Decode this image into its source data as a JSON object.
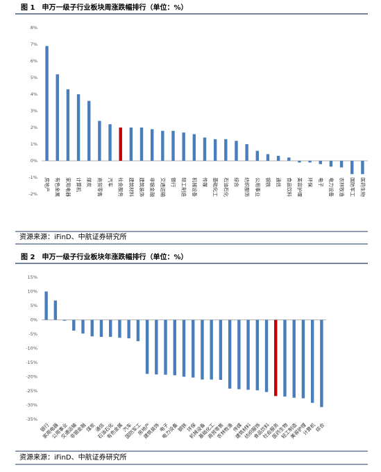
{
  "chart_data": [
    {
      "type": "bar",
      "title": "图 1　申万一级子行业板块周涨跌幅排行（单位：%）",
      "source": "资源来源：iFinD、中航证券研究所",
      "categories": [
        "房地产",
        "有色金属",
        "家用电器",
        "计算机",
        "煤炭",
        "商贸零售",
        "汽车",
        "社会服务",
        "建筑材料",
        "建筑装饰",
        "非银金融",
        "交通运输",
        "银行",
        "轻工制造",
        "机械设备",
        "传媒",
        "基础化工",
        "石油石化",
        "综合",
        "纺织服饰",
        "公用事业",
        "钢铁",
        "通信",
        "食品饮料",
        "美容护理",
        "环保",
        "电子",
        "电力设备",
        "农林牧渔",
        "国防军工",
        "医药生物"
      ],
      "values": [
        6.9,
        5.2,
        4.3,
        4.0,
        3.6,
        2.4,
        2.2,
        2.0,
        2.0,
        2.0,
        1.9,
        1.8,
        1.8,
        1.7,
        1.6,
        1.4,
        1.3,
        1.3,
        1.2,
        1.0,
        0.6,
        0.4,
        0.3,
        0.2,
        -0.1,
        -0.1,
        -0.2,
        -0.35,
        -0.4,
        -0.8,
        -0.8
      ],
      "color": "#4a7ebb",
      "highlight_color": "#c00000",
      "highlight_category": "社会服务",
      "ylim": [
        -2,
        8
      ],
      "yticks": [
        {
          "value": -2,
          "label": "-2%"
        },
        {
          "value": -1,
          "label": "-1%"
        },
        {
          "value": 0,
          "label": "0%"
        },
        {
          "value": 1,
          "label": "1%"
        },
        {
          "value": 2,
          "label": "2%"
        },
        {
          "value": 3,
          "label": "3%"
        },
        {
          "value": 4,
          "label": "4%"
        },
        {
          "value": 5,
          "label": "5%"
        },
        {
          "value": 6,
          "label": "6%"
        },
        {
          "value": 7,
          "label": "7%"
        },
        {
          "value": 8,
          "label": "8%"
        }
      ],
      "label_rotation": "vertical"
    },
    {
      "type": "bar",
      "title": "图 2　申万一级子行业板块年涨跌幅排行（单位：%）",
      "source": "资源来源：iFinD、中航证券研究所",
      "categories": [
        "银行",
        "家用电器",
        "公用事业",
        "交通运输",
        "非银金融",
        "煤炭",
        "通信",
        "石油石化",
        "有色金属",
        "汽车",
        "国防军工",
        "房地产",
        "建筑装饰",
        "电子",
        "电力设备",
        "钢铁",
        "环保",
        "机械设备",
        "基础化工",
        "商贸零售",
        "农林牧渔",
        "传媒",
        "建筑材料",
        "纺织服饰",
        "食品饮料",
        "社会服务",
        "医药生物",
        "轻工制造",
        "美容护理",
        "计算机",
        "综合"
      ],
      "values": [
        10.0,
        6.8,
        -0.3,
        -3.8,
        -4.8,
        -5.8,
        -6.0,
        -6.0,
        -6.3,
        -6.5,
        -7.5,
        -19.0,
        -19.2,
        -19.3,
        -19.5,
        -20.0,
        -20.3,
        -21.0,
        -21.0,
        -21.1,
        -24.2,
        -24.4,
        -24.6,
        -24.8,
        -25.4,
        -26.8,
        -27.0,
        -27.4,
        -27.6,
        -29.2,
        -30.7
      ],
      "color": "#4a7ebb",
      "highlight_color": "#c00000",
      "highlight_category": "社会服务",
      "ylim": [
        -35,
        15
      ],
      "yticks": [
        {
          "value": -35,
          "label": "-35%"
        },
        {
          "value": -30,
          "label": "-30%"
        },
        {
          "value": -25,
          "label": "-25%"
        },
        {
          "value": -20,
          "label": "-20%"
        },
        {
          "value": -15,
          "label": "-15%"
        },
        {
          "value": -10,
          "label": "-10%"
        },
        {
          "value": -5,
          "label": "-5%"
        },
        {
          "value": 0,
          "label": "0%"
        },
        {
          "value": 5,
          "label": "5%"
        },
        {
          "value": 10,
          "label": "10%"
        },
        {
          "value": 15,
          "label": "15%"
        }
      ],
      "label_rotation": "diagonal"
    }
  ]
}
